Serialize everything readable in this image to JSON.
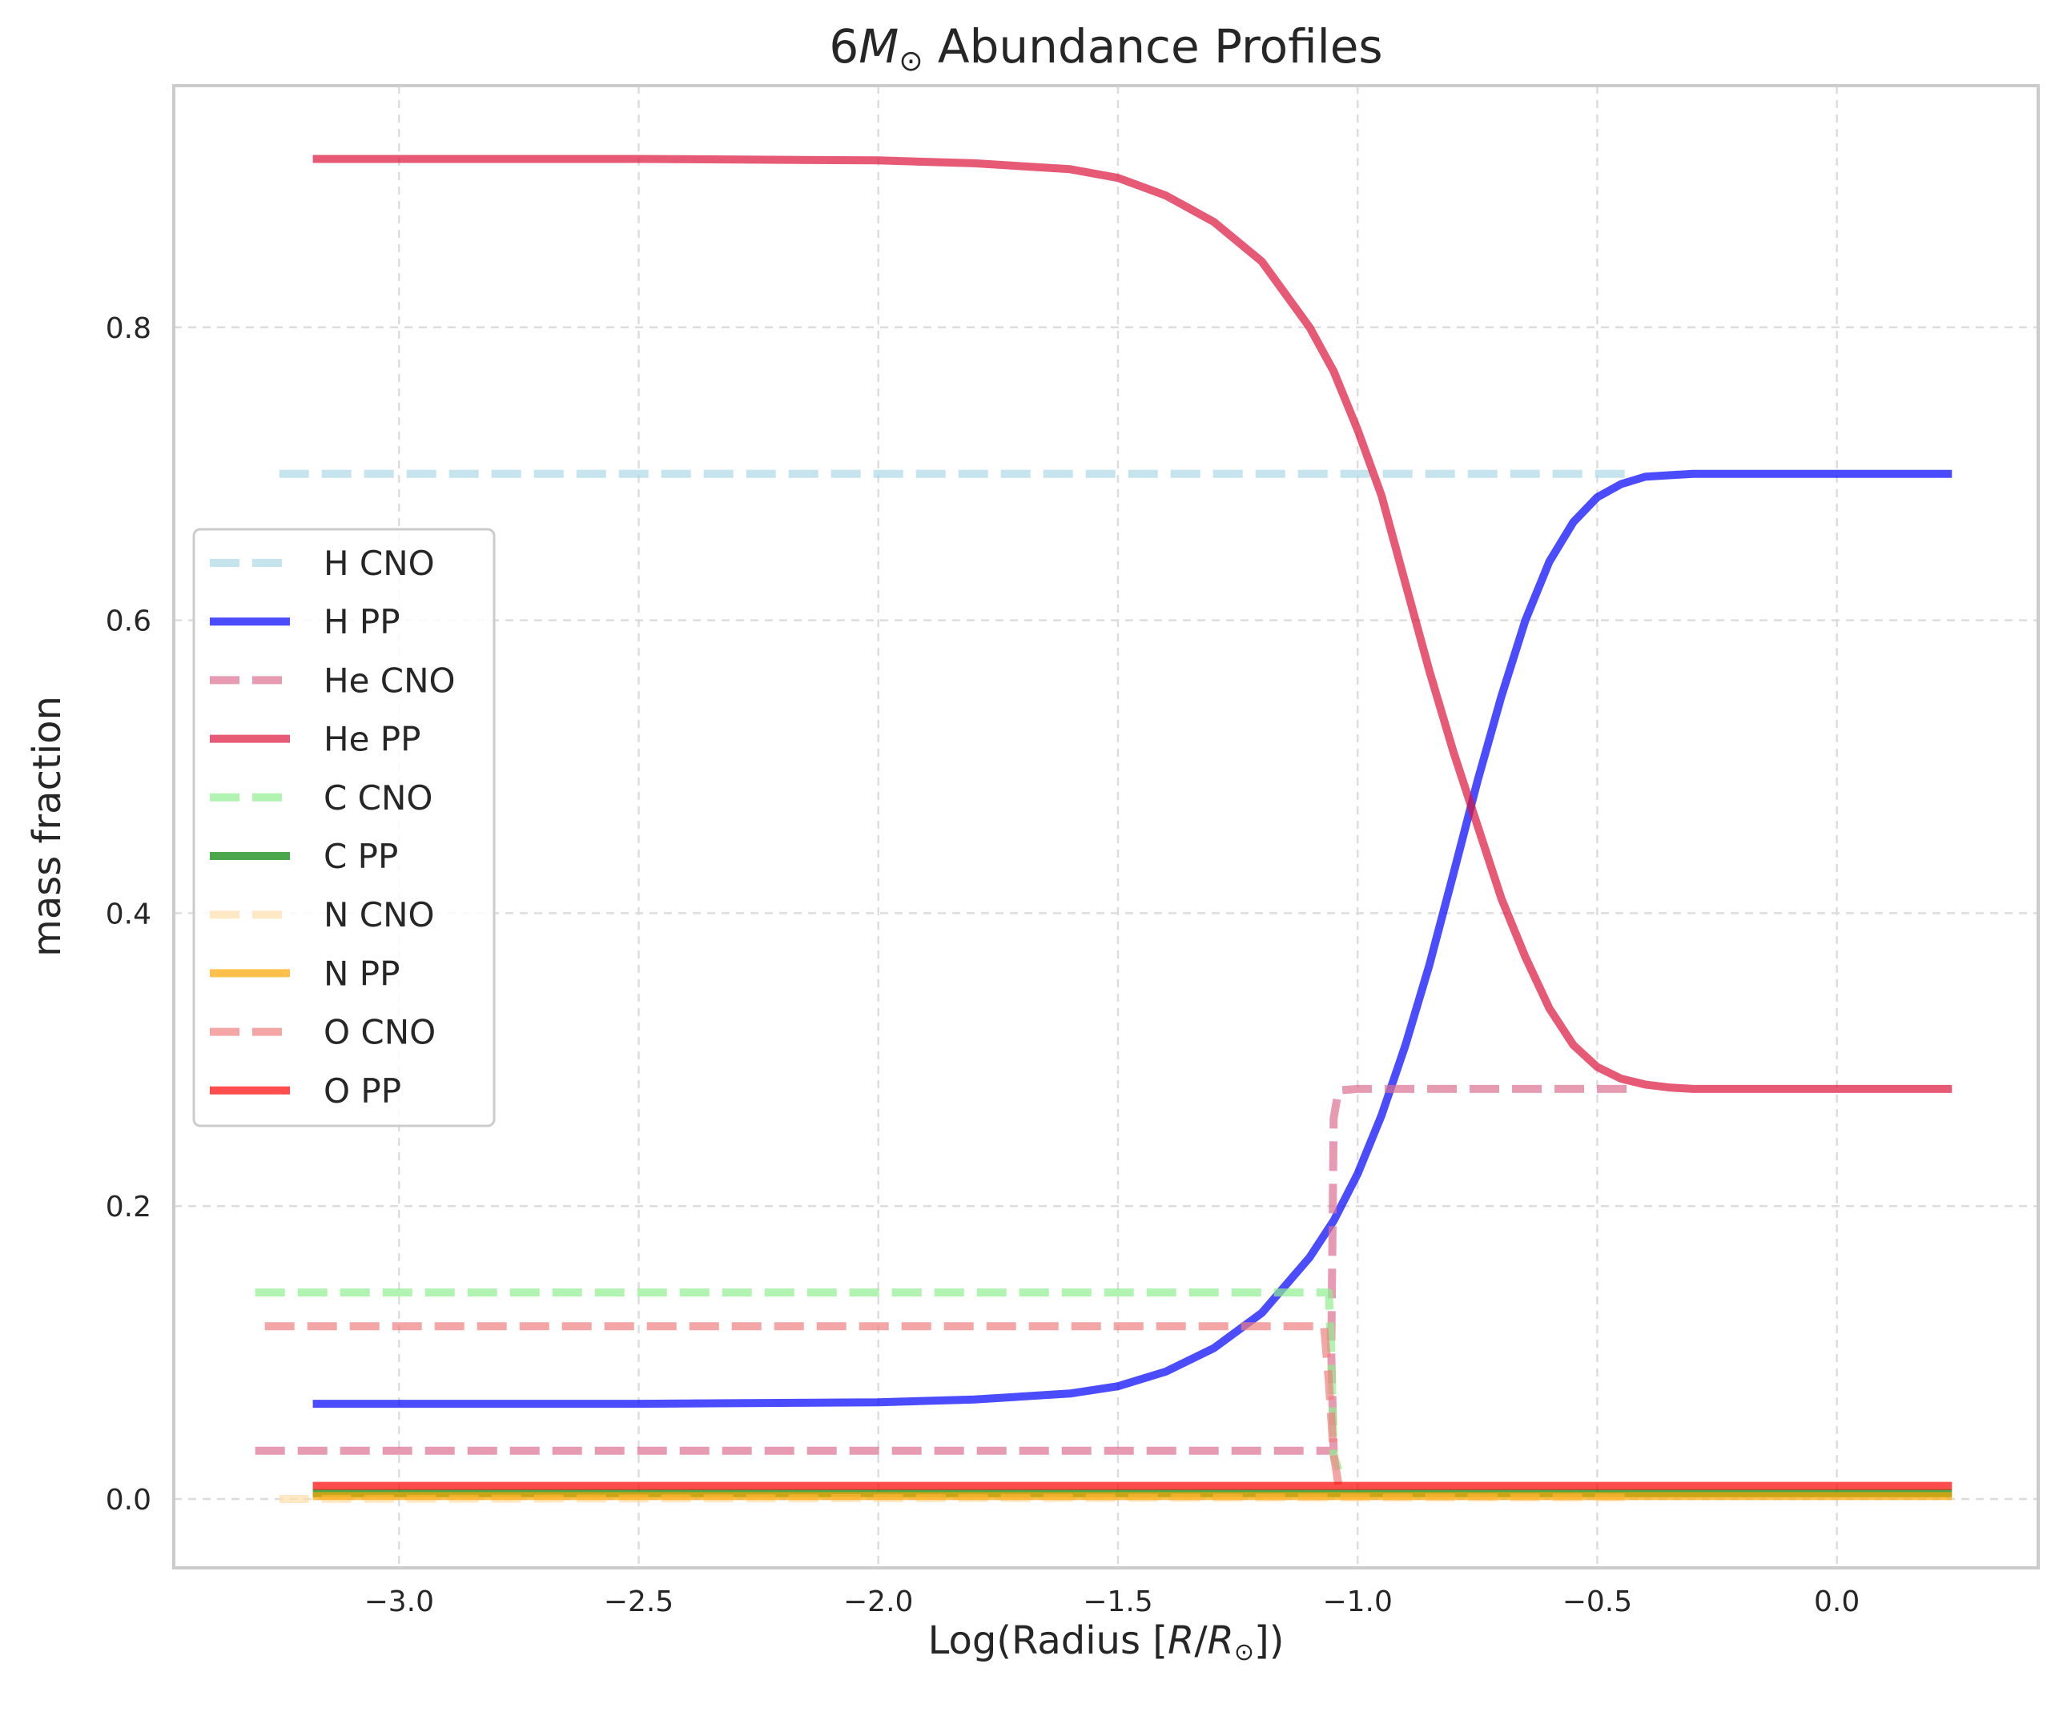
{
  "chart_data": {
    "type": "line",
    "title_main": "6",
    "title_symbol": "M",
    "title_sub": "⊙",
    "title_rest": " Abundance Profiles",
    "xlabel_pre": "Log(Radius [",
    "xlabel_r1": "R",
    "xlabel_slash": "/",
    "xlabel_r2": "R",
    "xlabel_sub": "⊙",
    "xlabel_post": "])",
    "ylabel": "mass fraction",
    "xlim": [
      -3.47,
      0.42
    ],
    "ylim": [
      -0.047,
      0.965
    ],
    "xticks": [
      -3.0,
      -2.5,
      -2.0,
      -1.5,
      -1.0,
      -0.5,
      0.0
    ],
    "xtick_labels": [
      "−3.0",
      "−2.5",
      "−2.0",
      "−1.5",
      "−1.0",
      "−0.5",
      "0.0"
    ],
    "yticks": [
      0.0,
      0.2,
      0.4,
      0.6,
      0.8
    ],
    "ytick_labels": [
      "0.0",
      "0.2",
      "0.4",
      "0.6",
      "0.8"
    ],
    "grid": true,
    "legend_position": "center-left",
    "series": [
      {
        "name": "H CNO",
        "color": "#add8e6",
        "opacity": 0.7,
        "dash": "dashed",
        "x": [
          -3.25,
          -0.42
        ],
        "y": [
          0.7,
          0.7
        ]
      },
      {
        "name": "H PP",
        "color": "#0000ff",
        "opacity": 0.7,
        "dash": "solid",
        "x": [
          -3.18,
          -2.5,
          -2.0,
          -1.8,
          -1.6,
          -1.5,
          -1.4,
          -1.3,
          -1.2,
          -1.1,
          -1.05,
          -1.0,
          -0.95,
          -0.9,
          -0.85,
          -0.8,
          -0.75,
          -0.7,
          -0.65,
          -0.6,
          -0.55,
          -0.5,
          -0.45,
          -0.4,
          -0.35,
          -0.3,
          -0.2,
          -0.1,
          0.0,
          0.24
        ],
        "y": [
          0.065,
          0.065,
          0.066,
          0.068,
          0.072,
          0.077,
          0.087,
          0.103,
          0.127,
          0.165,
          0.19,
          0.222,
          0.262,
          0.31,
          0.365,
          0.427,
          0.49,
          0.548,
          0.6,
          0.64,
          0.667,
          0.684,
          0.693,
          0.698,
          0.699,
          0.7,
          0.7,
          0.7,
          0.7,
          0.7
        ]
      },
      {
        "name": "He CNO",
        "color": "#db7093",
        "opacity": 0.7,
        "dash": "dashed",
        "x": [
          -3.3,
          -1.05,
          -1.055,
          -1.05,
          -1.04,
          -1.0,
          -0.42
        ],
        "y": [
          0.033,
          0.033,
          0.1,
          0.26,
          0.279,
          0.28,
          0.28
        ]
      },
      {
        "name": "He PP",
        "color": "#dc143c",
        "opacity": 0.7,
        "dash": "solid",
        "x": [
          -3.18,
          -2.5,
          -2.0,
          -1.8,
          -1.6,
          -1.5,
          -1.4,
          -1.3,
          -1.2,
          -1.1,
          -1.05,
          -1.0,
          -0.95,
          -0.9,
          -0.85,
          -0.8,
          -0.75,
          -0.7,
          -0.65,
          -0.6,
          -0.55,
          -0.5,
          -0.45,
          -0.4,
          -0.35,
          -0.3,
          -0.2,
          -0.1,
          0.0,
          0.24
        ],
        "y": [
          0.915,
          0.915,
          0.914,
          0.912,
          0.908,
          0.902,
          0.89,
          0.872,
          0.845,
          0.8,
          0.77,
          0.73,
          0.685,
          0.625,
          0.565,
          0.51,
          0.46,
          0.41,
          0.37,
          0.335,
          0.31,
          0.295,
          0.287,
          0.283,
          0.281,
          0.28,
          0.28,
          0.28,
          0.28,
          0.28
        ]
      },
      {
        "name": "C CNO",
        "color": "#90ee90",
        "opacity": 0.7,
        "dash": "dashed",
        "x": [
          -3.3,
          -1.06,
          -1.055,
          -1.05,
          -1.04
        ],
        "y": [
          0.141,
          0.141,
          0.1,
          0.03,
          0.02
        ]
      },
      {
        "name": "C PP",
        "color": "#008000",
        "opacity": 0.7,
        "dash": "solid",
        "x": [
          -3.18,
          0.24
        ],
        "y": [
          0.004,
          0.004
        ]
      },
      {
        "name": "N CNO",
        "color": "#ffdead",
        "opacity": 0.7,
        "dash": "dashed",
        "x": [
          -3.25,
          -1.05,
          -0.42
        ],
        "y": [
          0.0,
          0.001,
          0.001
        ]
      },
      {
        "name": "N PP",
        "color": "#ffa500",
        "opacity": 0.7,
        "dash": "solid",
        "x": [
          -3.18,
          0.24
        ],
        "y": [
          0.002,
          0.002
        ]
      },
      {
        "name": "O CNO",
        "color": "#f08080",
        "opacity": 0.7,
        "dash": "dashed",
        "x": [
          -3.28,
          -1.07,
          -1.06,
          -1.05,
          -1.04
        ],
        "y": [
          0.118,
          0.118,
          0.08,
          0.03,
          0.01
        ]
      },
      {
        "name": "O PP",
        "color": "#ff0000",
        "opacity": 0.7,
        "dash": "solid",
        "x": [
          -3.18,
          0.24
        ],
        "y": [
          0.009,
          0.009
        ]
      }
    ]
  }
}
